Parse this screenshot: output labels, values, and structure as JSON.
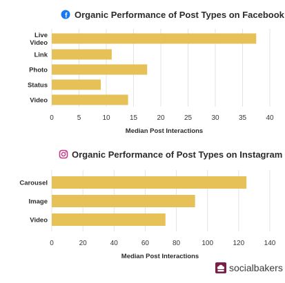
{
  "chart_data": [
    {
      "type": "bar",
      "orientation": "horizontal",
      "platform_icon": "facebook-icon",
      "title": "Organic Performance of Post Types on Facebook",
      "categories": [
        "Live\nVideo",
        "Link",
        "Photo",
        "Status",
        "Video"
      ],
      "values": [
        37.5,
        11,
        17.5,
        9,
        14
      ],
      "xlabel": "Median Post Interactions",
      "ylabel": "",
      "xlim": [
        0,
        40
      ],
      "ticks": [
        0,
        5,
        10,
        15,
        20,
        25,
        30,
        35,
        40
      ],
      "bar_color": "#e6c158",
      "grid": true
    },
    {
      "type": "bar",
      "orientation": "horizontal",
      "platform_icon": "instagram-icon",
      "title": "Organic Performance of Post Types on Instagram",
      "categories": [
        "Carousel",
        "Image",
        "Video"
      ],
      "values": [
        125,
        92,
        73
      ],
      "xlabel": "Median Post Interactions",
      "ylabel": "",
      "xlim": [
        0,
        140
      ],
      "ticks": [
        0,
        20,
        40,
        60,
        80,
        100,
        120,
        140
      ],
      "bar_color": "#e6c158",
      "grid": true
    }
  ],
  "brand": {
    "name": "socialbakers",
    "color": "#7a1f4a"
  },
  "colors": {
    "facebook": "#1877f2",
    "instagram": "#c13584",
    "grid": "#e3e3e3"
  }
}
